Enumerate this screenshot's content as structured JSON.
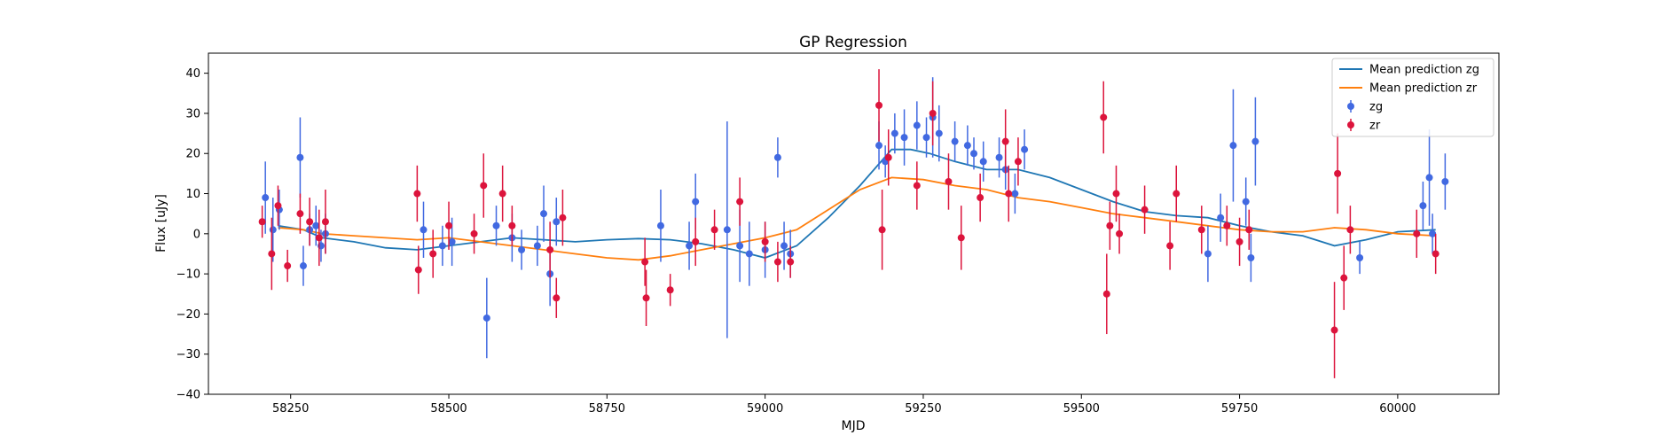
{
  "chart_data": {
    "type": "scatter",
    "title": "GP Regression",
    "xlabel": "MJD",
    "ylabel": "Flux [uJy]",
    "xlim": [
      58120,
      60160
    ],
    "ylim": [
      -40,
      45
    ],
    "xticks": [
      58250,
      58500,
      58750,
      59000,
      59250,
      59500,
      59750,
      60000
    ],
    "yticks": [
      -40,
      -30,
      -20,
      -10,
      0,
      10,
      20,
      30,
      40
    ],
    "grid": false,
    "legend_position": "top-right",
    "colors": {
      "zg_points": "#4169e1",
      "zr_points": "#dc143c",
      "zg_line": "#1f77b4",
      "zr_line": "#ff7f0e"
    },
    "legend": [
      "Mean prediction zg",
      "Mean prediction zr",
      "zg",
      "zr"
    ],
    "lines": [
      {
        "name": "Mean prediction zg",
        "x": [
          58230,
          58270,
          58300,
          58350,
          58400,
          58450,
          58500,
          58550,
          58600,
          58650,
          58700,
          58750,
          58800,
          58850,
          58900,
          58950,
          59000,
          59050,
          59100,
          59150,
          59200,
          59230,
          59260,
          59300,
          59350,
          59400,
          59450,
          59500,
          59550,
          59600,
          59650,
          59700,
          59750,
          59800,
          59850,
          59900,
          59950,
          60000,
          60060
        ],
        "y": [
          2,
          1,
          -1,
          -2,
          -3.5,
          -4,
          -3,
          -2,
          -1,
          -1.5,
          -2,
          -1.5,
          -1.2,
          -1.5,
          -2.5,
          -4,
          -6,
          -3,
          4,
          12,
          21,
          21,
          20,
          18,
          16,
          16,
          14,
          11,
          8,
          5.5,
          4.5,
          4,
          2,
          0.5,
          -0.5,
          -3,
          -1.5,
          0.5,
          1
        ]
      },
      {
        "name": "Mean prediction zr",
        "x": [
          58230,
          58270,
          58300,
          58350,
          58400,
          58450,
          58500,
          58550,
          58600,
          58650,
          58700,
          58750,
          58800,
          58850,
          58900,
          58950,
          59000,
          59050,
          59100,
          59150,
          59200,
          59250,
          59300,
          59350,
          59400,
          59450,
          59500,
          59550,
          59600,
          59650,
          59700,
          59750,
          59800,
          59850,
          59900,
          59950,
          60000,
          60060
        ],
        "y": [
          1.5,
          1,
          0,
          -0.5,
          -1,
          -1.5,
          -1,
          -2,
          -3,
          -4,
          -5,
          -6,
          -6.5,
          -5.5,
          -4,
          -2.5,
          -1,
          1,
          6,
          11,
          14,
          13.5,
          12,
          11,
          9,
          8,
          6.5,
          5,
          4,
          3,
          2,
          1,
          0.5,
          0.5,
          1.5,
          1,
          0,
          -0.5
        ]
      }
    ],
    "series": [
      {
        "name": "zg",
        "points": [
          [
            58210,
            9,
            9
          ],
          [
            58222,
            1,
            8
          ],
          [
            58232,
            6,
            5
          ],
          [
            58265,
            19,
            10
          ],
          [
            58270,
            -8,
            5
          ],
          [
            58280,
            1,
            4
          ],
          [
            58290,
            2,
            5
          ],
          [
            58298,
            -3,
            4
          ],
          [
            58305,
            0,
            5
          ],
          [
            58460,
            1,
            7
          ],
          [
            58490,
            -3,
            5
          ],
          [
            58505,
            -2,
            6
          ],
          [
            58560,
            -21,
            10
          ],
          [
            58575,
            2,
            5
          ],
          [
            58600,
            -1,
            6
          ],
          [
            58615,
            -4,
            5
          ],
          [
            58640,
            -3,
            5
          ],
          [
            58650,
            5,
            7
          ],
          [
            58660,
            -10,
            8
          ],
          [
            58670,
            3,
            6
          ],
          [
            58835,
            2,
            9
          ],
          [
            58880,
            -3,
            6
          ],
          [
            58890,
            8,
            7
          ],
          [
            58940,
            1,
            27
          ],
          [
            58960,
            -3,
            9
          ],
          [
            58975,
            -5,
            8
          ],
          [
            59000,
            -4,
            7
          ],
          [
            59020,
            19,
            5
          ],
          [
            59030,
            -3,
            6
          ],
          [
            59040,
            -5,
            6
          ],
          [
            59180,
            22,
            6
          ],
          [
            59190,
            18,
            4
          ],
          [
            59205,
            25,
            5
          ],
          [
            59220,
            24,
            7
          ],
          [
            59240,
            27,
            6
          ],
          [
            59255,
            24,
            5
          ],
          [
            59265,
            29,
            10
          ],
          [
            59275,
            25,
            7
          ],
          [
            59300,
            23,
            5
          ],
          [
            59320,
            22,
            5
          ],
          [
            59330,
            20,
            4
          ],
          [
            59345,
            18,
            5
          ],
          [
            59370,
            19,
            5
          ],
          [
            59380,
            16,
            5
          ],
          [
            59395,
            10,
            5
          ],
          [
            59410,
            21,
            5
          ],
          [
            59700,
            -5,
            7
          ],
          [
            59720,
            4,
            6
          ],
          [
            59740,
            22,
            14
          ],
          [
            59760,
            8,
            6
          ],
          [
            59775,
            23,
            11
          ],
          [
            59768,
            -6,
            6
          ],
          [
            59940,
            -6,
            4
          ],
          [
            60040,
            7,
            6
          ],
          [
            60050,
            14,
            12
          ],
          [
            60055,
            0,
            5
          ],
          [
            60075,
            13,
            7
          ]
        ]
      },
      {
        "name": "zr",
        "points": [
          [
            58205,
            3,
            4
          ],
          [
            58220,
            -5,
            9
          ],
          [
            58230,
            7,
            5
          ],
          [
            58245,
            -8,
            4
          ],
          [
            58265,
            5,
            5
          ],
          [
            58280,
            3,
            6
          ],
          [
            58295,
            -1,
            7
          ],
          [
            58305,
            3,
            8
          ],
          [
            58450,
            10,
            7
          ],
          [
            58452,
            -9,
            6
          ],
          [
            58475,
            -5,
            6
          ],
          [
            58500,
            2,
            6
          ],
          [
            58540,
            0,
            5
          ],
          [
            58555,
            12,
            8
          ],
          [
            58585,
            10,
            7
          ],
          [
            58600,
            2,
            5
          ],
          [
            58660,
            -4,
            7
          ],
          [
            58670,
            -16,
            5
          ],
          [
            58680,
            4,
            7
          ],
          [
            58810,
            -7,
            6
          ],
          [
            58812,
            -16,
            7
          ],
          [
            58850,
            -14,
            4
          ],
          [
            58890,
            -2,
            6
          ],
          [
            58920,
            1,
            5
          ],
          [
            58960,
            8,
            6
          ],
          [
            59000,
            -2,
            5
          ],
          [
            59020,
            -7,
            5
          ],
          [
            59040,
            -7,
            4
          ],
          [
            59180,
            32,
            9
          ],
          [
            59185,
            1,
            10
          ],
          [
            59195,
            19,
            7
          ],
          [
            59240,
            12,
            6
          ],
          [
            59265,
            30,
            8
          ],
          [
            59290,
            13,
            7
          ],
          [
            59310,
            -1,
            8
          ],
          [
            59340,
            9,
            6
          ],
          [
            59380,
            23,
            8
          ],
          [
            59385,
            10,
            7
          ],
          [
            59400,
            18,
            6
          ],
          [
            59535,
            29,
            9
          ],
          [
            59540,
            -15,
            10
          ],
          [
            59545,
            2,
            6
          ],
          [
            59555,
            10,
            7
          ],
          [
            59560,
            0,
            5
          ],
          [
            59600,
            6,
            6
          ],
          [
            59640,
            -3,
            6
          ],
          [
            59650,
            10,
            7
          ],
          [
            59690,
            1,
            6
          ],
          [
            59730,
            2,
            5
          ],
          [
            59750,
            -2,
            6
          ],
          [
            59765,
            1,
            5
          ],
          [
            59900,
            -24,
            12
          ],
          [
            59905,
            15,
            10
          ],
          [
            59915,
            -11,
            8
          ],
          [
            59925,
            1,
            6
          ],
          [
            60030,
            0,
            6
          ],
          [
            60060,
            -5,
            5
          ]
        ]
      }
    ]
  }
}
